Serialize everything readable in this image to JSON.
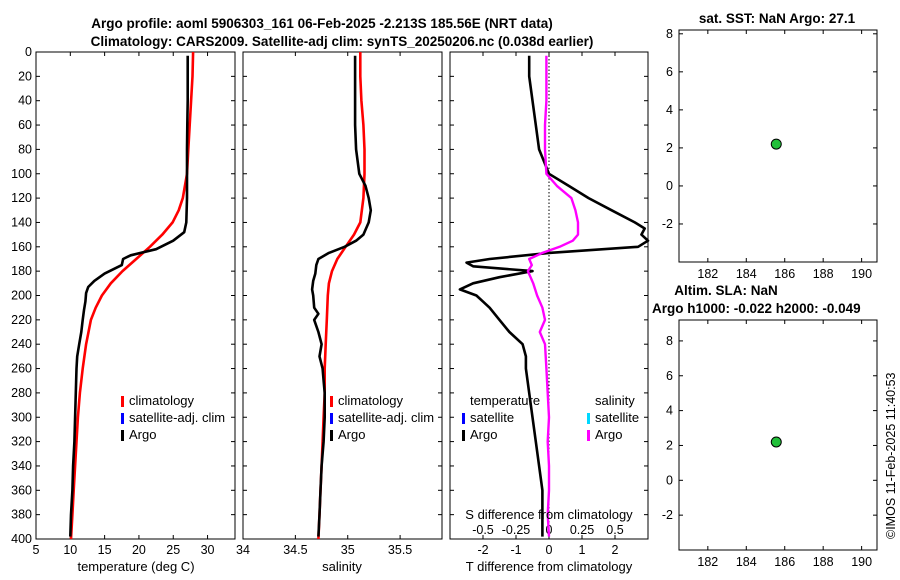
{
  "titles": {
    "main_line1": "Argo profile: aoml 5906303_161 06-Feb-2025 -2.213S 185.56E (NRT data)",
    "main_line2": "Climatology: CARS2009. Satellite-adj clim: synTS_20250206.nc (0.038d earlier)",
    "sst": "sat. SST: NaN Argo: 27.1",
    "sla_line1": "Altim. SLA: NaN",
    "sla_line2": "Argo h1000: -0.022 h2000: -0.049",
    "copyright": "©IMOS 11-Feb-2025 11:40:53"
  },
  "colors": {
    "climatology": "#ff0000",
    "satellite": "#0000ff",
    "argo": "#000000",
    "salinity_diff": "#ff00ff",
    "satellite_salinity": "#00d8ff",
    "marker": "#22c03a"
  },
  "legend": {
    "climatology": "climatology",
    "satellite_adj": "satellite-adj. clim",
    "argo": "Argo",
    "temperature": "temperature",
    "salinity": "salinity",
    "satellite": "satellite"
  },
  "chart_data": [
    {
      "id": "temperature",
      "type": "line",
      "xlabel": "temperature (deg C)",
      "ylabel": "",
      "xlim": [
        5,
        34
      ],
      "ylim": [
        0,
        400
      ],
      "y_reversed": true,
      "xticks": [
        5,
        10,
        15,
        20,
        25,
        30
      ],
      "xticklabels": [
        "5",
        "10",
        "15",
        "20",
        "25",
        "30"
      ],
      "yticks": [
        0,
        20,
        40,
        60,
        80,
        100,
        120,
        140,
        160,
        180,
        200,
        220,
        240,
        260,
        280,
        300,
        320,
        340,
        360,
        380,
        400
      ],
      "series": [
        {
          "name": "climatology",
          "color": "#ff0000",
          "depth": [
            0,
            20,
            40,
            60,
            80,
            100,
            120,
            130,
            140,
            150,
            160,
            170,
            180,
            190,
            200,
            210,
            220,
            240,
            260,
            280,
            300,
            320,
            340,
            360,
            380,
            400
          ],
          "values": [
            27.9,
            27.8,
            27.6,
            27.4,
            27.2,
            27.0,
            26.4,
            25.8,
            24.9,
            23.4,
            21.6,
            19.6,
            17.6,
            15.9,
            14.6,
            13.7,
            13.0,
            12.3,
            11.8,
            11.4,
            11.1,
            10.9,
            10.7,
            10.5,
            10.3,
            10.1
          ]
        },
        {
          "name": "Argo",
          "color": "#000000",
          "depth": [
            3,
            20,
            40,
            60,
            80,
            100,
            120,
            140,
            148,
            155,
            162,
            167,
            170,
            175,
            182,
            188,
            193,
            198,
            205,
            212,
            220,
            230,
            240,
            250,
            260,
            280,
            300,
            320,
            340,
            360,
            380,
            398
          ],
          "values": [
            27.1,
            27.1,
            27.1,
            27.05,
            27.0,
            27.0,
            27.0,
            26.9,
            26.6,
            25.0,
            22.5,
            18.8,
            17.7,
            17.5,
            15.0,
            13.5,
            12.6,
            12.3,
            12.2,
            12.0,
            11.8,
            11.6,
            11.3,
            11.0,
            10.9,
            10.8,
            10.7,
            10.6,
            10.4,
            10.3,
            10.1,
            10.0
          ]
        }
      ]
    },
    {
      "id": "salinity",
      "type": "line",
      "xlabel": "salinity",
      "xlim": [
        34,
        35.9
      ],
      "ylim": [
        0,
        400
      ],
      "y_reversed": true,
      "xticks": [
        34,
        34.5,
        35,
        35.5
      ],
      "xticklabels": [
        "34",
        "34.5",
        "35",
        "35.5"
      ],
      "series": [
        {
          "name": "climatology",
          "color": "#ff0000",
          "depth": [
            0,
            20,
            40,
            60,
            80,
            100,
            120,
            140,
            150,
            160,
            170,
            180,
            190,
            200,
            220,
            240,
            260,
            280,
            300,
            320,
            340,
            360,
            380,
            400
          ],
          "values": [
            35.12,
            35.12,
            35.13,
            35.15,
            35.16,
            35.16,
            35.15,
            35.12,
            35.06,
            34.98,
            34.9,
            34.85,
            34.82,
            34.81,
            34.8,
            34.79,
            34.78,
            34.78,
            34.77,
            34.76,
            34.75,
            34.74,
            34.73,
            34.72
          ]
        },
        {
          "name": "Argo",
          "color": "#000000",
          "depth": [
            3,
            20,
            40,
            60,
            80,
            100,
            110,
            120,
            130,
            140,
            150,
            155,
            160,
            165,
            170,
            175,
            182,
            188,
            195,
            200,
            210,
            215,
            220,
            230,
            240,
            250,
            260,
            270,
            280,
            300,
            320,
            340,
            360,
            380,
            398
          ],
          "values": [
            35.07,
            35.07,
            35.07,
            35.07,
            35.08,
            35.11,
            35.17,
            35.2,
            35.22,
            35.2,
            35.15,
            35.08,
            34.97,
            34.82,
            34.72,
            34.7,
            34.69,
            34.67,
            34.66,
            34.67,
            34.68,
            34.72,
            34.68,
            34.72,
            34.75,
            34.73,
            34.76,
            34.77,
            34.78,
            34.78,
            34.77,
            34.75,
            34.74,
            34.73,
            34.72
          ]
        }
      ]
    },
    {
      "id": "difference",
      "type": "line",
      "xlabel": "T difference from climatology",
      "xlabel_top": "S difference from climatology",
      "xlim": [
        -3,
        3
      ],
      "ylim": [
        0,
        400
      ],
      "y_reversed": true,
      "xticks": [
        -2,
        -1,
        0,
        1,
        2
      ],
      "xticklabels": [
        "-2",
        "-1",
        "0",
        "1",
        "2"
      ],
      "s_xticklabels": [
        "-0.5",
        "-0.25",
        "0",
        "0.25",
        "0.5"
      ],
      "series": [
        {
          "name": "temperature Argo",
          "color": "#000000",
          "depth": [
            3,
            20,
            40,
            60,
            80,
            100,
            110,
            120,
            130,
            140,
            145,
            150,
            155,
            160,
            165,
            170,
            173,
            176,
            180,
            185,
            190,
            195,
            200,
            205,
            210,
            220,
            230,
            240,
            250,
            260,
            280,
            300,
            320,
            340,
            360,
            380,
            398
          ],
          "values": [
            -0.6,
            -0.6,
            -0.5,
            -0.4,
            -0.3,
            0.0,
            0.6,
            1.2,
            1.9,
            2.6,
            2.9,
            2.8,
            3.0,
            2.7,
            0.0,
            -1.8,
            -2.5,
            -2.3,
            -0.5,
            -1.5,
            -2.3,
            -2.7,
            -2.2,
            -2.0,
            -1.8,
            -1.5,
            -1.2,
            -0.8,
            -0.7,
            -0.7,
            -0.6,
            -0.5,
            -0.4,
            -0.3,
            -0.2,
            -0.2,
            -0.2
          ]
        },
        {
          "name": "salinity Argo",
          "color": "#ff00ff",
          "depth": [
            3,
            20,
            40,
            60,
            80,
            100,
            110,
            120,
            130,
            140,
            150,
            155,
            160,
            165,
            170,
            175,
            180,
            190,
            200,
            210,
            220,
            230,
            240,
            260,
            280,
            300,
            320,
            340,
            360,
            380,
            398
          ],
          "values": [
            -0.02,
            -0.02,
            -0.02,
            -0.03,
            -0.03,
            -0.02,
            0.06,
            0.17,
            0.2,
            0.22,
            0.22,
            0.18,
            0.08,
            -0.05,
            -0.15,
            -0.13,
            -0.16,
            -0.12,
            -0.09,
            -0.05,
            -0.03,
            -0.07,
            -0.03,
            -0.02,
            -0.01,
            0.0,
            -0.01,
            0.0,
            0.0,
            -0.01,
            0.0
          ]
        }
      ]
    },
    {
      "id": "sst",
      "type": "scatter",
      "xlim": [
        180.5,
        190.8
      ],
      "ylim": [
        -4,
        8.2
      ],
      "xticks": [
        182,
        184,
        186,
        188,
        190
      ],
      "xticklabels": [
        "182",
        "184",
        "186",
        "188",
        "190"
      ],
      "yticks": [
        -2,
        0,
        2,
        4,
        6,
        8
      ],
      "yticklabels": [
        "-2",
        "0",
        "2",
        "4",
        "6",
        "8"
      ],
      "points": [
        {
          "x": 185.56,
          "y": 2.2
        }
      ]
    },
    {
      "id": "sla",
      "type": "scatter",
      "xlim": [
        180.5,
        190.8
      ],
      "ylim": [
        -4,
        9.2
      ],
      "xticks": [
        182,
        184,
        186,
        188,
        190
      ],
      "xticklabels": [
        "182",
        "184",
        "186",
        "188",
        "190"
      ],
      "yticks": [
        -2,
        0,
        2,
        4,
        6,
        8
      ],
      "yticklabels": [
        "-2",
        "0",
        "2",
        "4",
        "6",
        "8"
      ],
      "points": [
        {
          "x": 185.56,
          "y": 2.2
        }
      ]
    }
  ]
}
